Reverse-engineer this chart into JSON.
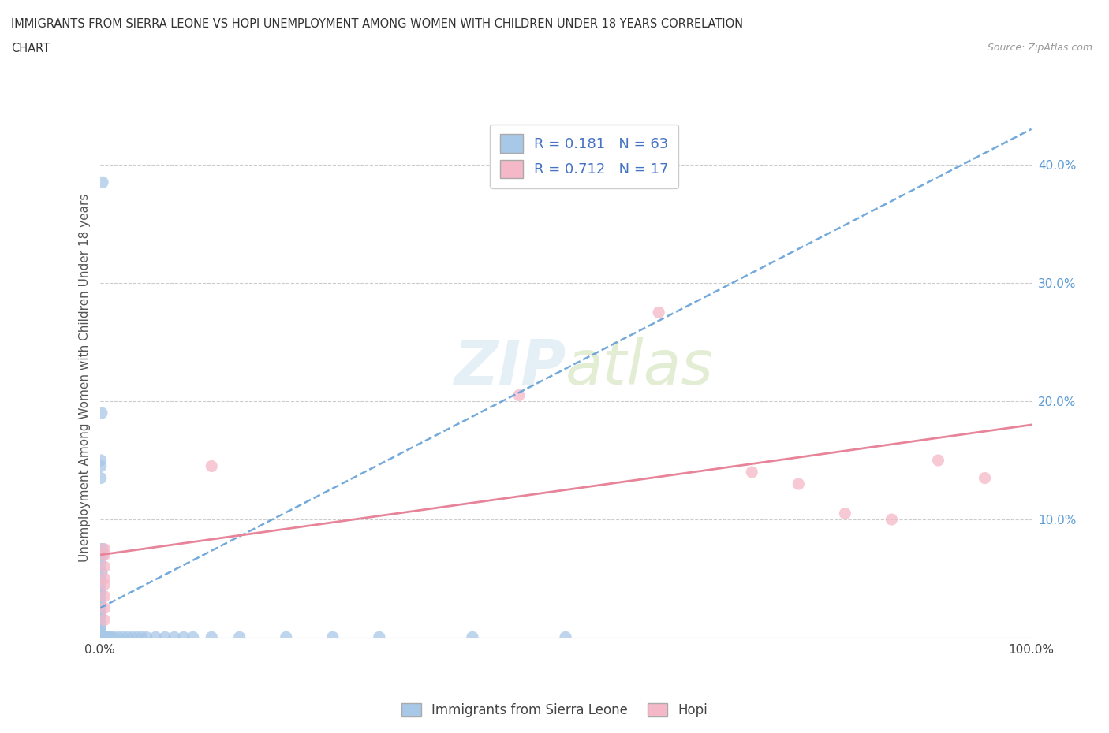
{
  "title_line1": "IMMIGRANTS FROM SIERRA LEONE VS HOPI UNEMPLOYMENT AMONG WOMEN WITH CHILDREN UNDER 18 YEARS CORRELATION",
  "title_line2": "CHART",
  "source_text": "Source: ZipAtlas.com",
  "ylabel": "Unemployment Among Women with Children Under 18 years",
  "watermark_top": "ZIP",
  "watermark_bot": "atlas",
  "legend_bottom": [
    "Immigrants from Sierra Leone",
    "Hopi"
  ],
  "R_sierra": 0.181,
  "N_sierra": 63,
  "R_hopi": 0.712,
  "N_hopi": 17,
  "xlim": [
    0,
    100
  ],
  "ylim": [
    0,
    44
  ],
  "xtick_positions": [
    0,
    100
  ],
  "xtick_labels": [
    "0.0%",
    "100.0%"
  ],
  "ytick_positions": [
    10,
    20,
    30,
    40
  ],
  "ytick_labels": [
    "10.0%",
    "20.0%",
    "30.0%",
    "40.0%"
  ],
  "grid_color": "#cccccc",
  "sierra_color": "#a8c8e8",
  "hopi_color": "#f5b8c8",
  "sierra_line_color": "#5b9bd5",
  "hopi_line_color": "#e8849a",
  "sierra_scatter": [
    [
      0.3,
      38.5
    ],
    [
      0.2,
      19.0
    ],
    [
      0.1,
      15.0
    ],
    [
      0.1,
      14.5
    ],
    [
      0.1,
      13.5
    ],
    [
      0.05,
      7.5
    ],
    [
      0.3,
      7.0
    ],
    [
      0.3,
      7.5
    ],
    [
      0.05,
      6.5
    ],
    [
      0.05,
      6.0
    ],
    [
      0.2,
      5.5
    ],
    [
      0.05,
      5.0
    ],
    [
      0.05,
      4.5
    ],
    [
      0.05,
      4.0
    ],
    [
      0.05,
      3.8
    ],
    [
      0.05,
      3.5
    ],
    [
      0.05,
      3.2
    ],
    [
      0.05,
      3.0
    ],
    [
      0.05,
      2.8
    ],
    [
      0.05,
      2.5
    ],
    [
      0.05,
      2.2
    ],
    [
      0.05,
      2.0
    ],
    [
      0.05,
      1.8
    ],
    [
      0.05,
      1.5
    ],
    [
      0.05,
      1.2
    ],
    [
      0.05,
      1.0
    ],
    [
      0.05,
      0.8
    ],
    [
      0.05,
      0.5
    ],
    [
      0.05,
      0.3
    ],
    [
      0.05,
      0.1
    ],
    [
      0.05,
      0.05
    ],
    [
      0.1,
      0.05
    ],
    [
      0.15,
      0.05
    ],
    [
      0.2,
      0.05
    ],
    [
      0.3,
      0.05
    ],
    [
      0.4,
      0.05
    ],
    [
      0.5,
      0.05
    ],
    [
      0.6,
      0.05
    ],
    [
      0.7,
      0.05
    ],
    [
      0.8,
      0.05
    ],
    [
      0.9,
      0.05
    ],
    [
      1.0,
      0.05
    ],
    [
      1.2,
      0.05
    ],
    [
      1.5,
      0.05
    ],
    [
      2.0,
      0.05
    ],
    [
      2.5,
      0.05
    ],
    [
      3.0,
      0.05
    ],
    [
      3.5,
      0.05
    ],
    [
      4.0,
      0.05
    ],
    [
      4.5,
      0.05
    ],
    [
      5.0,
      0.05
    ],
    [
      6.0,
      0.05
    ],
    [
      7.0,
      0.05
    ],
    [
      8.0,
      0.05
    ],
    [
      9.0,
      0.05
    ],
    [
      10.0,
      0.05
    ],
    [
      12.0,
      0.05
    ],
    [
      15.0,
      0.05
    ],
    [
      20.0,
      0.05
    ],
    [
      25.0,
      0.05
    ],
    [
      30.0,
      0.05
    ],
    [
      40.0,
      0.05
    ],
    [
      50.0,
      0.05
    ]
  ],
  "hopi_scatter": [
    [
      0.5,
      7.5
    ],
    [
      0.5,
      7.0
    ],
    [
      0.5,
      6.0
    ],
    [
      0.5,
      5.0
    ],
    [
      0.5,
      4.5
    ],
    [
      0.5,
      3.5
    ],
    [
      0.5,
      2.5
    ],
    [
      0.5,
      1.5
    ],
    [
      12.0,
      14.5
    ],
    [
      45.0,
      20.5
    ],
    [
      60.0,
      27.5
    ],
    [
      70.0,
      14.0
    ],
    [
      75.0,
      13.0
    ],
    [
      80.0,
      10.5
    ],
    [
      85.0,
      10.0
    ],
    [
      90.0,
      15.0
    ],
    [
      95.0,
      13.5
    ]
  ],
  "sierra_line": [
    0,
    100,
    2.5,
    43.0
  ],
  "hopi_line": [
    0,
    100,
    7.0,
    18.0
  ]
}
